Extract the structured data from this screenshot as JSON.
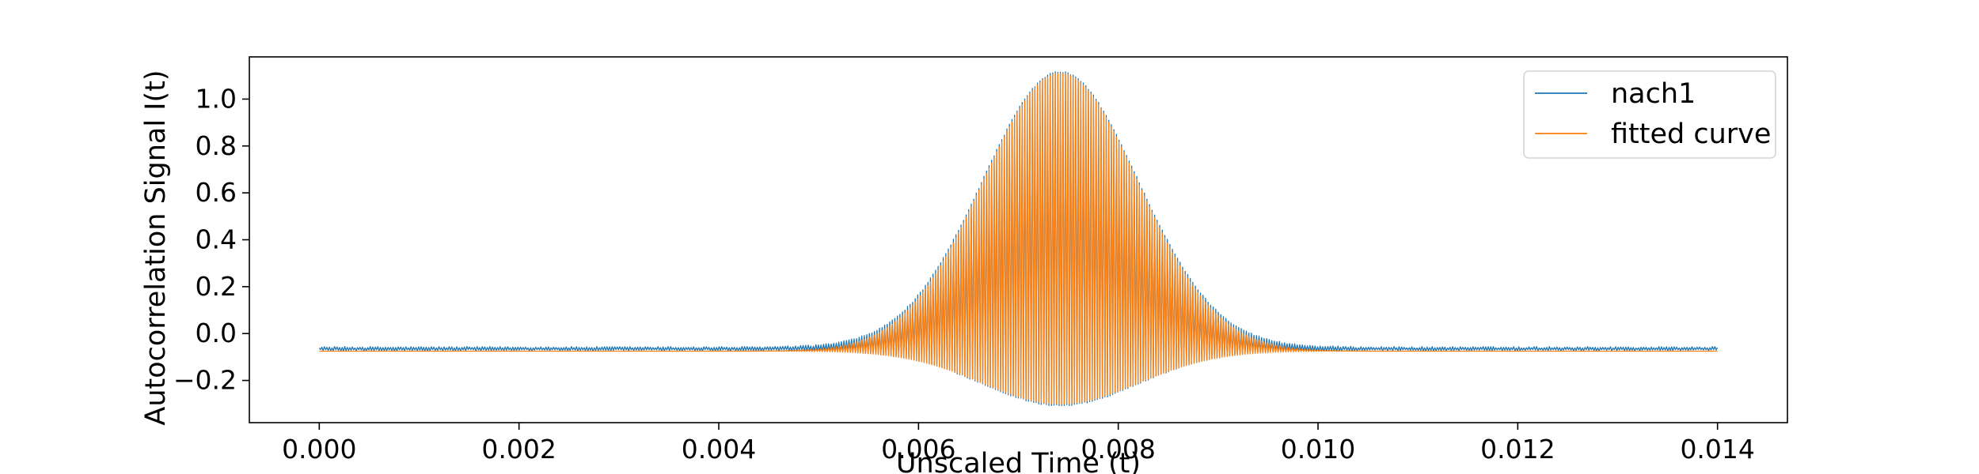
{
  "chart_data": {
    "type": "line",
    "xlabel": "Unscaled Time (t)",
    "ylabel": "Autocorrelation Signal I(t)",
    "xlim": [
      -0.0007,
      0.0147
    ],
    "ylim": [
      -0.38,
      1.18
    ],
    "xticks": [
      0.0,
      0.002,
      0.004,
      0.006,
      0.008,
      0.01,
      0.012,
      0.014
    ],
    "xtick_labels": [
      "0.000",
      "0.002",
      "0.004",
      "0.006",
      "0.008",
      "0.010",
      "0.012",
      "0.014"
    ],
    "yticks": [
      -0.2,
      0.0,
      0.2,
      0.4,
      0.6,
      0.8,
      1.0
    ],
    "ytick_labels": [
      "−0.2",
      "0.0",
      "0.2",
      "0.4",
      "0.6",
      "0.8",
      "1.0"
    ],
    "grid": false,
    "legend_position": "top-right",
    "series": [
      {
        "name": "nach1",
        "color": "#1f77b4",
        "x_range": [
          0.0,
          0.014
        ],
        "baseline": -0.065,
        "upper_envelope_peak": 1.11,
        "lower_envelope_min": -0.3,
        "envelope_center": 0.00742,
        "noise_amplitude": 0.008
      },
      {
        "name": "fitted curve",
        "color": "#ff7f0e",
        "x_range": [
          0.0,
          0.014
        ],
        "baseline": -0.075,
        "upper_envelope_peak": 1.11,
        "lower_envelope_min": -0.3,
        "envelope_center": 0.00742,
        "noise_amplitude": 0.0
      }
    ]
  }
}
